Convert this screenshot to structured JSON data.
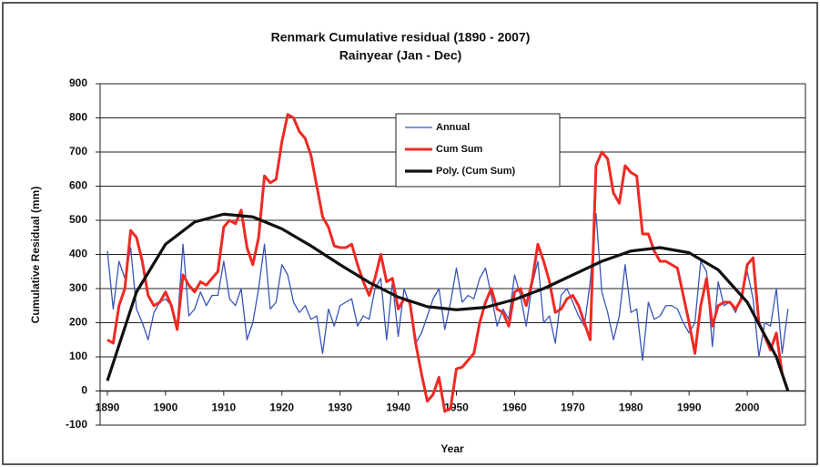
{
  "chart_data": {
    "type": "line",
    "title": "Renmark Cumulative  residual (1890 - 2007)",
    "subtitle": "Rainyear (Jan - Dec)",
    "y_label": "Cumulative Residual (mm)",
    "x_label": "Year",
    "x": [
      1890,
      1891,
      1892,
      1893,
      1894,
      1895,
      1896,
      1897,
      1898,
      1899,
      1900,
      1901,
      1902,
      1903,
      1904,
      1905,
      1906,
      1907,
      1908,
      1909,
      1910,
      1911,
      1912,
      1913,
      1914,
      1915,
      1916,
      1917,
      1918,
      1919,
      1920,
      1921,
      1922,
      1923,
      1924,
      1925,
      1926,
      1927,
      1928,
      1929,
      1930,
      1931,
      1932,
      1933,
      1934,
      1935,
      1936,
      1937,
      1938,
      1939,
      1940,
      1941,
      1942,
      1943,
      1944,
      1945,
      1946,
      1947,
      1948,
      1949,
      1950,
      1951,
      1952,
      1953,
      1954,
      1955,
      1956,
      1957,
      1958,
      1959,
      1960,
      1961,
      1962,
      1963,
      1964,
      1965,
      1966,
      1967,
      1968,
      1969,
      1970,
      1971,
      1972,
      1973,
      1974,
      1975,
      1976,
      1977,
      1978,
      1979,
      1980,
      1981,
      1982,
      1983,
      1984,
      1985,
      1986,
      1987,
      1988,
      1989,
      1990,
      1991,
      1992,
      1993,
      1994,
      1995,
      1996,
      1997,
      1998,
      1999,
      2000,
      2001,
      2002,
      2003,
      2004,
      2005,
      2006,
      2007
    ],
    "series": [
      {
        "name": "Annual",
        "color": "#3a55b8",
        "width": 1.3,
        "values": [
          410,
          240,
          380,
          330,
          420,
          240,
          200,
          150,
          230,
          260,
          270,
          250,
          190,
          430,
          220,
          240,
          290,
          250,
          280,
          280,
          380,
          270,
          250,
          300,
          150,
          200,
          300,
          430,
          240,
          260,
          370,
          340,
          260,
          230,
          250,
          210,
          220,
          110,
          240,
          190,
          250,
          260,
          270,
          190,
          220,
          210,
          300,
          330,
          150,
          320,
          160,
          300,
          250,
          140,
          170,
          220,
          270,
          300,
          180,
          260,
          360,
          260,
          280,
          270,
          330,
          360,
          280,
          190,
          240,
          210,
          340,
          280,
          190,
          310,
          380,
          200,
          220,
          140,
          280,
          300,
          260,
          220,
          190,
          320,
          520,
          290,
          230,
          150,
          220,
          370,
          230,
          240,
          90,
          260,
          210,
          220,
          250,
          250,
          240,
          200,
          170,
          200,
          380,
          350,
          130,
          320,
          250,
          260,
          230,
          280,
          350,
          270,
          100,
          200,
          190,
          300,
          110,
          240
        ]
      },
      {
        "name": "Cum Sum",
        "color": "#ee2a24",
        "width": 3,
        "values": [
          150,
          140,
          250,
          300,
          470,
          450,
          380,
          280,
          250,
          260,
          290,
          250,
          180,
          340,
          310,
          290,
          320,
          310,
          330,
          350,
          480,
          500,
          490,
          530,
          420,
          370,
          450,
          630,
          610,
          620,
          730,
          810,
          800,
          760,
          740,
          690,
          600,
          510,
          480,
          425,
          420,
          420,
          430,
          370,
          320,
          280,
          330,
          400,
          320,
          330,
          240,
          270,
          260,
          140,
          50,
          -30,
          -10,
          40,
          -60,
          -50,
          65,
          70,
          90,
          110,
          200,
          260,
          300,
          240,
          230,
          190,
          290,
          300,
          250,
          320,
          430,
          380,
          320,
          230,
          240,
          270,
          280,
          250,
          200,
          150,
          660,
          700,
          680,
          580,
          550,
          660,
          640,
          630,
          460,
          460,
          410,
          380,
          380,
          370,
          360,
          280,
          200,
          110,
          250,
          330,
          190,
          250,
          260,
          260,
          240,
          270,
          370,
          390,
          200,
          160,
          120,
          170,
          50,
          0
        ]
      },
      {
        "name": "Poly. (Cum Sum)",
        "color": "#111111",
        "width": 3.2,
        "x": [
          1890,
          1895,
          1900,
          1905,
          1910,
          1915,
          1920,
          1925,
          1930,
          1935,
          1940,
          1945,
          1950,
          1955,
          1960,
          1965,
          1970,
          1975,
          1980,
          1985,
          1990,
          1995,
          2000,
          2005,
          2007
        ],
        "values": [
          30,
          290,
          430,
          495,
          518,
          510,
          475,
          425,
          370,
          318,
          275,
          247,
          238,
          245,
          268,
          300,
          340,
          380,
          410,
          420,
          405,
          355,
          260,
          100,
          0
        ]
      }
    ],
    "xlim": [
      1890,
      2010
    ],
    "ylim": [
      -100,
      900
    ],
    "xticks": [
      1890,
      1900,
      1910,
      1920,
      1930,
      1940,
      1950,
      1960,
      1970,
      1980,
      1990,
      2000
    ],
    "yticks": [
      -100,
      0,
      100,
      200,
      300,
      400,
      500,
      600,
      700,
      800,
      900
    ],
    "grid": true
  }
}
